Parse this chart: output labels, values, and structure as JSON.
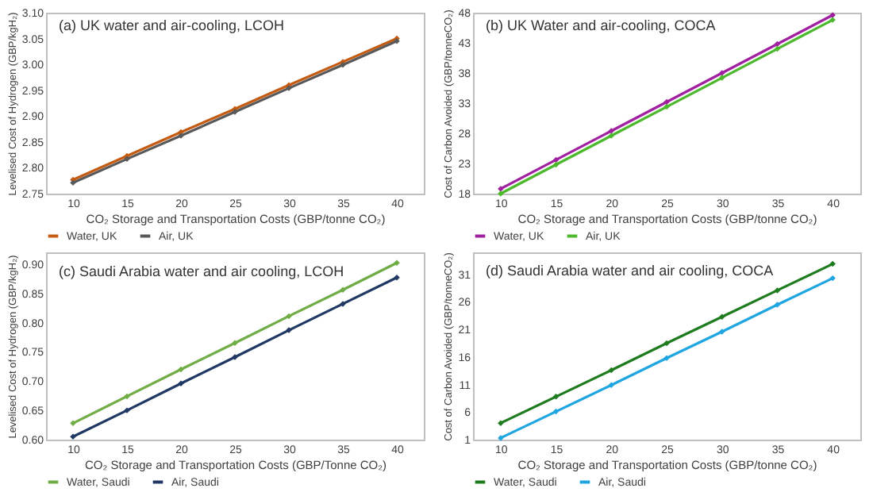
{
  "chart_data": [
    {
      "type": "line",
      "title": "(a) UK water and air-cooling, LCOH",
      "xlabel": "CO₂ Storage and Transportation Costs (GBP/tonne CO₂)",
      "ylabel": "Levelised Cost of Hydrogen (GBP/kgH₂)",
      "categories": [
        "10",
        "15",
        "20",
        "25",
        "30",
        "35",
        "40"
      ],
      "series": [
        {
          "name": "Water, UK",
          "color": "#c55a11",
          "values": [
            2.777,
            2.823,
            2.869,
            2.914,
            2.96,
            3.005,
            3.05
          ]
        },
        {
          "name": "Air, UK",
          "color": "#595959",
          "values": [
            2.771,
            2.817,
            2.862,
            2.908,
            2.954,
            2.999,
            3.045
          ]
        }
      ],
      "ylim": [
        2.75,
        3.1
      ],
      "yticks": [
        2.75,
        {
          "value": 2.8,
          "label": "2.80"
        },
        2.85,
        {
          "value": 2.9,
          "label": "2.90"
        },
        2.95,
        {
          "value": 3,
          "label": "3.00"
        },
        3.05,
        {
          "value": 3.1,
          "label": "3.10"
        }
      ],
      "legend": "bottom",
      "marker": "diamond",
      "line_style": "solid"
    },
    {
      "type": "line",
      "title": "(b) UK Water and air-cooling, COCA",
      "xlabel": "CO₂ Storage and Transportation Costs (GBP/tonne CO₂)",
      "ylabel": "Cost of Carbon Avoided (GBP/tonneCO₂)",
      "categories": [
        "10",
        "15",
        "20",
        "25",
        "30",
        "35",
        "40"
      ],
      "series": [
        {
          "name": "Water, UK",
          "color": "#a020a0",
          "values": [
            18.8,
            23.6,
            28.4,
            33.2,
            38.0,
            42.8,
            47.6
          ]
        },
        {
          "name": "Air, UK",
          "color": "#4cb82c",
          "values": [
            18.0,
            22.8,
            27.6,
            32.4,
            37.2,
            42.0,
            46.8
          ]
        }
      ],
      "ylim": [
        18,
        48
      ],
      "yticks": [
        18,
        23,
        28,
        33,
        38,
        43,
        48
      ],
      "legend": "bottom",
      "marker": "diamond",
      "line_style": "solid"
    },
    {
      "type": "line",
      "title": "(c) Saudi Arabia water and air cooling, LCOH",
      "xlabel": "CO₂ Storage and Transportation Costs (GBP/Tonne CO₂)",
      "ylabel": "Levelised Cost of Hydrogen (GBP/kgH₂)",
      "categories": [
        "10",
        "15",
        "20",
        "25",
        "30",
        "35",
        "40"
      ],
      "series": [
        {
          "name": "Water, Saudi",
          "color": "#70ad47",
          "values": [
            0.628,
            0.674,
            0.72,
            0.765,
            0.811,
            0.856,
            0.902
          ]
        },
        {
          "name": "Air, Saudi",
          "color": "#1f3864",
          "values": [
            0.605,
            0.65,
            0.696,
            0.741,
            0.787,
            0.832,
            0.877
          ]
        }
      ],
      "ylim": [
        0.6,
        0.92
      ],
      "yticks": [
        {
          "value": 0.6,
          "label": "0.60"
        },
        0.65,
        {
          "value": 0.7,
          "label": "0.70"
        },
        0.75,
        {
          "value": 0.8,
          "label": "0.80"
        },
        0.85,
        {
          "value": 0.9,
          "label": "0.90"
        }
      ],
      "legend": "bottom",
      "marker": "diamond",
      "line_style": "solid"
    },
    {
      "type": "line",
      "title": "(d) Saudi Arabia water and air cooling, COCA",
      "xlabel": "CO₂ Storage and Transportation Costs (GBP/tonne CO₂)",
      "ylabel": "Cost of Carbon Avoided (GBP/tonneCO₂)",
      "categories": [
        "10",
        "15",
        "20",
        "25",
        "30",
        "35",
        "40"
      ],
      "series": [
        {
          "name": "Water, Saudi",
          "color": "#1e7b1e",
          "values": [
            4.0,
            8.8,
            13.6,
            18.5,
            23.3,
            28.1,
            32.9
          ]
        },
        {
          "name": "Air, Saudi",
          "color": "#1fa5e0",
          "values": [
            1.3,
            6.1,
            10.9,
            15.8,
            20.6,
            25.5,
            30.3
          ]
        }
      ],
      "ylim": [
        1,
        35
      ],
      "yticks": [
        1,
        6,
        11,
        16,
        21,
        26,
        31
      ],
      "legend": "bottom",
      "marker": "diamond",
      "line_style": "solid"
    }
  ]
}
